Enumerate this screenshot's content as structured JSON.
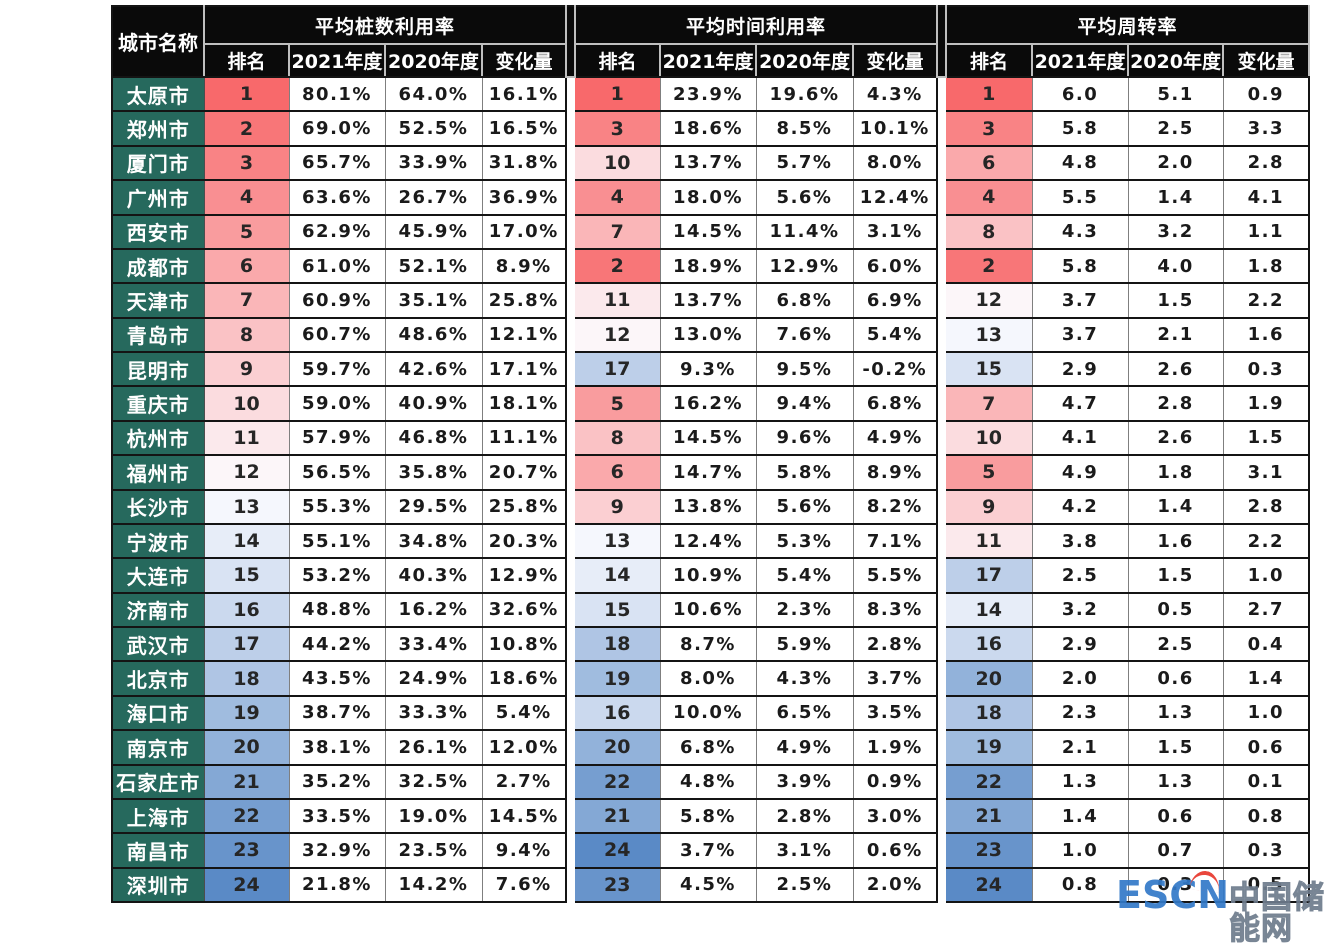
{
  "chart_data": {
    "type": "table",
    "title": "",
    "corner_header": "城市名称",
    "groups": [
      {
        "title": "平均桩数利用率",
        "subheaders": [
          "排名",
          "2021年度",
          "2020年度",
          "变化量"
        ]
      },
      {
        "title": "平均时间利用率",
        "subheaders": [
          "排名",
          "2021年度",
          "2020年度",
          "变化量"
        ]
      },
      {
        "title": "平均周转率",
        "subheaders": [
          "排名",
          "2021年度",
          "2020年度",
          "变化量"
        ]
      }
    ],
    "rank_color_scale": {
      "low": "#F8696B",
      "mid": "#FCFCFF",
      "high": "#5A8AC6",
      "rank_min": 1,
      "rank_max": 24,
      "note": "red = best rank, blue = worst rank"
    },
    "rows": [
      {
        "city": "太原市",
        "pile": [
          "1",
          "80.1%",
          "64.0%",
          "16.1%"
        ],
        "time": [
          "1",
          "23.9%",
          "19.6%",
          "4.3%"
        ],
        "turn": [
          "1",
          "6.0",
          "5.1",
          "0.9"
        ]
      },
      {
        "city": "郑州市",
        "pile": [
          "2",
          "69.0%",
          "52.5%",
          "16.5%"
        ],
        "time": [
          "3",
          "18.6%",
          "8.5%",
          "10.1%"
        ],
        "turn": [
          "3",
          "5.8",
          "2.5",
          "3.3"
        ]
      },
      {
        "city": "厦门市",
        "pile": [
          "3",
          "65.7%",
          "33.9%",
          "31.8%"
        ],
        "time": [
          "10",
          "13.7%",
          "5.7%",
          "8.0%"
        ],
        "turn": [
          "6",
          "4.8",
          "2.0",
          "2.8"
        ]
      },
      {
        "city": "广州市",
        "pile": [
          "4",
          "63.6%",
          "26.7%",
          "36.9%"
        ],
        "time": [
          "4",
          "18.0%",
          "5.6%",
          "12.4%"
        ],
        "turn": [
          "4",
          "5.5",
          "1.4",
          "4.1"
        ]
      },
      {
        "city": "西安市",
        "pile": [
          "5",
          "62.9%",
          "45.9%",
          "17.0%"
        ],
        "time": [
          "7",
          "14.5%",
          "11.4%",
          "3.1%"
        ],
        "turn": [
          "8",
          "4.3",
          "3.2",
          "1.1"
        ]
      },
      {
        "city": "成都市",
        "pile": [
          "6",
          "61.0%",
          "52.1%",
          "8.9%"
        ],
        "time": [
          "2",
          "18.9%",
          "12.9%",
          "6.0%"
        ],
        "turn": [
          "2",
          "5.8",
          "4.0",
          "1.8"
        ]
      },
      {
        "city": "天津市",
        "pile": [
          "7",
          "60.9%",
          "35.1%",
          "25.8%"
        ],
        "time": [
          "11",
          "13.7%",
          "6.8%",
          "6.9%"
        ],
        "turn": [
          "12",
          "3.7",
          "1.5",
          "2.2"
        ]
      },
      {
        "city": "青岛市",
        "pile": [
          "8",
          "60.7%",
          "48.6%",
          "12.1%"
        ],
        "time": [
          "12",
          "13.0%",
          "7.6%",
          "5.4%"
        ],
        "turn": [
          "13",
          "3.7",
          "2.1",
          "1.6"
        ]
      },
      {
        "city": "昆明市",
        "pile": [
          "9",
          "59.7%",
          "42.6%",
          "17.1%"
        ],
        "time": [
          "17",
          "9.3%",
          "9.5%",
          "-0.2%"
        ],
        "turn": [
          "15",
          "2.9",
          "2.6",
          "0.3"
        ]
      },
      {
        "city": "重庆市",
        "pile": [
          "10",
          "59.0%",
          "40.9%",
          "18.1%"
        ],
        "time": [
          "5",
          "16.2%",
          "9.4%",
          "6.8%"
        ],
        "turn": [
          "7",
          "4.7",
          "2.8",
          "1.9"
        ]
      },
      {
        "city": "杭州市",
        "pile": [
          "11",
          "57.9%",
          "46.8%",
          "11.1%"
        ],
        "time": [
          "8",
          "14.5%",
          "9.6%",
          "4.9%"
        ],
        "turn": [
          "10",
          "4.1",
          "2.6",
          "1.5"
        ]
      },
      {
        "city": "福州市",
        "pile": [
          "12",
          "56.5%",
          "35.8%",
          "20.7%"
        ],
        "time": [
          "6",
          "14.7%",
          "5.8%",
          "8.9%"
        ],
        "turn": [
          "5",
          "4.9",
          "1.8",
          "3.1"
        ]
      },
      {
        "city": "长沙市",
        "pile": [
          "13",
          "55.3%",
          "29.5%",
          "25.8%"
        ],
        "time": [
          "9",
          "13.8%",
          "5.6%",
          "8.2%"
        ],
        "turn": [
          "9",
          "4.2",
          "1.4",
          "2.8"
        ]
      },
      {
        "city": "宁波市",
        "pile": [
          "14",
          "55.1%",
          "34.8%",
          "20.3%"
        ],
        "time": [
          "13",
          "12.4%",
          "5.3%",
          "7.1%"
        ],
        "turn": [
          "11",
          "3.8",
          "1.6",
          "2.2"
        ]
      },
      {
        "city": "大连市",
        "pile": [
          "15",
          "53.2%",
          "40.3%",
          "12.9%"
        ],
        "time": [
          "14",
          "10.9%",
          "5.4%",
          "5.5%"
        ],
        "turn": [
          "17",
          "2.5",
          "1.5",
          "1.0"
        ]
      },
      {
        "city": "济南市",
        "pile": [
          "16",
          "48.8%",
          "16.2%",
          "32.6%"
        ],
        "time": [
          "15",
          "10.6%",
          "2.3%",
          "8.3%"
        ],
        "turn": [
          "14",
          "3.2",
          "0.5",
          "2.7"
        ]
      },
      {
        "city": "武汉市",
        "pile": [
          "17",
          "44.2%",
          "33.4%",
          "10.8%"
        ],
        "time": [
          "18",
          "8.7%",
          "5.9%",
          "2.8%"
        ],
        "turn": [
          "16",
          "2.9",
          "2.5",
          "0.4"
        ]
      },
      {
        "city": "北京市",
        "pile": [
          "18",
          "43.5%",
          "24.9%",
          "18.6%"
        ],
        "time": [
          "19",
          "8.0%",
          "4.3%",
          "3.7%"
        ],
        "turn": [
          "20",
          "2.0",
          "0.6",
          "1.4"
        ]
      },
      {
        "city": "海口市",
        "pile": [
          "19",
          "38.7%",
          "33.3%",
          "5.4%"
        ],
        "time": [
          "16",
          "10.0%",
          "6.5%",
          "3.5%"
        ],
        "turn": [
          "18",
          "2.3",
          "1.3",
          "1.0"
        ]
      },
      {
        "city": "南京市",
        "pile": [
          "20",
          "38.1%",
          "26.1%",
          "12.0%"
        ],
        "time": [
          "20",
          "6.8%",
          "4.9%",
          "1.9%"
        ],
        "turn": [
          "19",
          "2.1",
          "1.5",
          "0.6"
        ]
      },
      {
        "city": "石家庄市",
        "pile": [
          "21",
          "35.2%",
          "32.5%",
          "2.7%"
        ],
        "time": [
          "22",
          "4.8%",
          "3.9%",
          "0.9%"
        ],
        "turn": [
          "22",
          "1.3",
          "1.3",
          "0.1"
        ]
      },
      {
        "city": "上海市",
        "pile": [
          "22",
          "33.5%",
          "19.0%",
          "14.5%"
        ],
        "time": [
          "21",
          "5.8%",
          "2.8%",
          "3.0%"
        ],
        "turn": [
          "21",
          "1.4",
          "0.6",
          "0.8"
        ]
      },
      {
        "city": "南昌市",
        "pile": [
          "23",
          "32.9%",
          "23.5%",
          "9.4%"
        ],
        "time": [
          "24",
          "3.7%",
          "3.1%",
          "0.6%"
        ],
        "turn": [
          "23",
          "1.0",
          "0.7",
          "0.3"
        ]
      },
      {
        "city": "深圳市",
        "pile": [
          "24",
          "21.8%",
          "14.2%",
          "7.6%"
        ],
        "time": [
          "23",
          "4.5%",
          "2.5%",
          "2.0%"
        ],
        "turn": [
          "24",
          "0.8",
          "0.3",
          "0.5"
        ]
      }
    ]
  },
  "colors": {
    "city_cell_bg": "#26695D",
    "header_bg": "#0A0A0A",
    "rank_low": "#F8696B",
    "rank_mid": "#FCFCFF",
    "rank_high": "#5A8AC6"
  },
  "watermark": {
    "escn": "ESCN",
    "site": "中国储能网",
    "escn_color": "#3279C8",
    "site_color": "#7C8A9A",
    "accent_color": "#E8372C"
  }
}
